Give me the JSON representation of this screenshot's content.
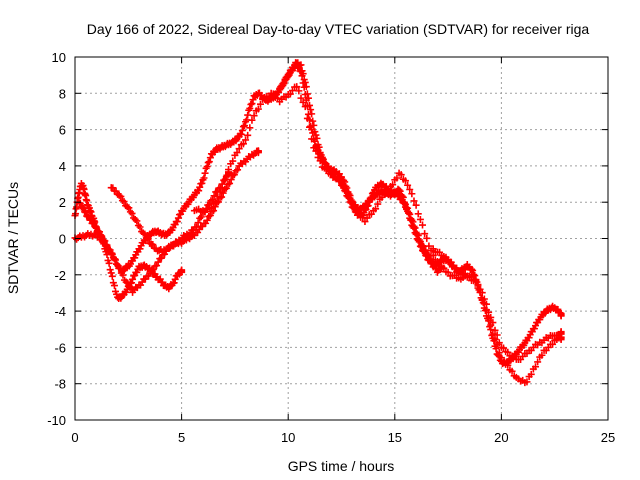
{
  "chart_data": {
    "type": "scatter",
    "title": "Day 166 of 2022, Sidereal Day-to-day VTEC variation (SDTVAR) for receiver riga",
    "xlabel": "GPS time / hours",
    "ylabel": "SDTVAR / TECUs",
    "xlim": [
      0,
      25
    ],
    "ylim": [
      -10,
      10
    ],
    "xticks": [
      0,
      5,
      10,
      15,
      20,
      25
    ],
    "yticks": [
      -10,
      -8,
      -6,
      -4,
      -2,
      0,
      2,
      4,
      6,
      8,
      10
    ],
    "grid": true,
    "marker": "plus",
    "color": "#ff0000",
    "series": [
      {
        "x": [
          0.0,
          0.1,
          0.2,
          0.3,
          0.4,
          0.5,
          0.6,
          0.7,
          0.8,
          0.9,
          1.0,
          1.2,
          1.4,
          1.6,
          1.8,
          2.0,
          2.2,
          2.4,
          2.6,
          2.8,
          3.0,
          3.2,
          3.4,
          3.6,
          3.8,
          4.0,
          4.2,
          4.4,
          4.6,
          4.8,
          5.0
        ],
        "y": [
          1.2,
          2.0,
          2.6,
          3.0,
          2.8,
          2.3,
          1.8,
          1.6,
          1.2,
          1.0,
          0.5,
          0.2,
          -0.5,
          -1.4,
          -2.4,
          -3.3,
          -3.2,
          -2.9,
          -2.5,
          -2.0,
          -1.6,
          -1.5,
          -1.6,
          -1.8,
          -2.1,
          -2.3,
          -2.6,
          -2.7,
          -2.5,
          -2.0,
          -1.8
        ]
      },
      {
        "x": [
          0.0,
          0.3,
          0.6,
          0.9,
          1.2,
          1.5,
          1.8,
          2.1,
          2.4,
          2.7,
          3.0,
          3.3,
          3.6,
          3.9,
          4.2,
          4.5,
          4.8,
          5.1,
          5.4,
          5.7,
          6.0,
          6.3,
          6.6,
          6.9,
          7.2
        ],
        "y": [
          0.0,
          0.1,
          0.2,
          0.2,
          0.0,
          -0.5,
          -1.0,
          -1.7,
          -2.4,
          -2.9,
          -2.6,
          -2.2,
          -1.8,
          -1.3,
          -0.8,
          -0.4,
          -0.2,
          0.1,
          0.3,
          0.7,
          1.4,
          1.9,
          2.5,
          3.0,
          3.6
        ]
      },
      {
        "x": [
          1.7,
          2.0,
          2.3,
          2.6,
          2.9,
          3.2,
          3.5,
          3.8,
          4.1,
          4.4,
          4.7,
          5.0,
          5.3,
          5.6,
          5.9,
          6.2,
          6.5,
          6.8,
          7.1,
          7.4,
          7.7,
          8.0,
          8.3,
          8.6
        ],
        "y": [
          2.8,
          2.5,
          2.0,
          1.5,
          0.9,
          0.3,
          -0.2,
          -0.6,
          -0.7,
          -0.5,
          -0.3,
          -0.2,
          0.0,
          0.2,
          0.6,
          1.0,
          1.6,
          2.2,
          2.8,
          3.4,
          4.0,
          4.3,
          4.6,
          4.8
        ]
      },
      {
        "x": [
          0.2,
          0.4,
          0.6,
          0.8,
          1.0,
          1.2,
          1.4,
          1.6,
          1.8,
          2.0,
          2.2,
          2.4,
          2.6,
          2.8,
          3.0,
          3.2,
          3.4,
          3.6,
          3.8,
          4.0,
          4.2,
          4.4,
          4.6,
          4.8,
          5.0,
          5.2,
          5.4,
          5.6,
          5.8,
          6.0,
          6.2,
          6.4,
          6.6,
          6.8,
          7.0,
          7.2,
          7.4,
          7.6,
          7.8,
          8.0,
          8.2,
          8.4,
          8.6,
          8.8,
          9.0,
          9.2,
          9.4,
          9.6,
          9.8,
          10.0,
          10.2,
          10.4,
          10.6,
          10.8,
          11.0,
          11.2,
          11.4,
          11.6,
          11.8,
          12.0,
          12.2,
          12.4,
          12.6,
          12.8,
          13.0,
          13.2,
          13.4,
          13.6,
          13.8,
          14.0,
          14.2,
          14.4,
          14.6,
          14.8,
          15.0,
          15.2,
          15.4,
          15.6,
          15.8,
          16.0,
          16.2,
          16.4,
          16.6,
          16.8,
          17.0,
          17.2,
          17.4,
          17.6,
          17.8,
          18.0,
          18.2,
          18.4,
          18.6,
          18.8,
          19.0,
          19.2,
          19.4,
          19.6,
          19.8,
          20.0,
          20.2,
          20.4,
          20.6,
          20.8,
          21.0,
          21.2,
          21.4,
          21.6,
          21.8,
          22.0,
          22.2,
          22.4,
          22.6,
          22.8
        ],
        "y": [
          2.0,
          1.6,
          1.2,
          0.9,
          0.6,
          0.2,
          -0.2,
          -0.6,
          -1.0,
          -1.5,
          -1.8,
          -1.6,
          -1.4,
          -1.0,
          -0.6,
          -0.2,
          0.1,
          0.3,
          0.4,
          0.3,
          0.2,
          0.3,
          0.6,
          1.0,
          1.5,
          1.8,
          2.1,
          2.4,
          2.7,
          3.2,
          4.0,
          4.6,
          4.9,
          5.0,
          5.1,
          5.2,
          5.3,
          5.5,
          5.8,
          6.4,
          7.2,
          7.8,
          8.0,
          7.8,
          7.6,
          7.7,
          7.9,
          8.2,
          8.6,
          9.0,
          9.3,
          9.6,
          9.2,
          8.0,
          6.5,
          5.5,
          4.8,
          4.4,
          4.0,
          3.8,
          3.7,
          3.5,
          3.2,
          2.6,
          2.0,
          1.7,
          1.6,
          1.8,
          2.1,
          2.3,
          2.5,
          2.6,
          2.5,
          2.4,
          2.5,
          2.7,
          2.2,
          1.5,
          0.8,
          0.2,
          -0.4,
          -0.8,
          -1.2,
          -1.5,
          -1.4,
          -1.2,
          -1.1,
          -1.3,
          -1.6,
          -1.8,
          -1.7,
          -1.5,
          -1.7,
          -2.2,
          -3.0,
          -3.8,
          -4.6,
          -5.5,
          -6.3,
          -6.8,
          -6.9,
          -6.7,
          -6.5,
          -6.2,
          -5.9,
          -5.6,
          -5.2,
          -4.8,
          -4.4,
          -4.1,
          -3.9,
          -3.8,
          -3.9,
          -4.2
        ]
      },
      {
        "x": [
          5.6,
          6.0,
          6.4,
          6.8,
          7.2,
          7.6,
          8.0,
          8.4,
          8.8,
          9.2,
          9.6,
          10.0,
          10.4,
          10.8,
          11.2,
          11.6,
          12.0,
          12.4,
          12.8,
          13.2,
          13.6,
          14.0,
          14.4,
          14.8,
          15.2,
          15.6,
          16.0,
          16.4,
          16.8,
          17.2,
          17.6,
          18.0,
          18.4,
          18.8,
          19.2,
          19.6,
          20.0,
          20.4,
          20.8,
          21.2,
          21.6,
          22.0,
          22.4,
          22.8
        ],
        "y": [
          1.6,
          1.5,
          1.7,
          2.5,
          3.8,
          4.8,
          5.4,
          6.8,
          7.6,
          8.0,
          7.6,
          7.9,
          8.4,
          7.2,
          5.0,
          4.0,
          3.5,
          3.2,
          2.5,
          1.5,
          1.0,
          1.5,
          2.3,
          2.8,
          3.6,
          3.0,
          1.8,
          0.3,
          -1.0,
          -1.6,
          -2.0,
          -2.2,
          -2.1,
          -2.4,
          -3.6,
          -5.2,
          -6.6,
          -7.2,
          -7.8,
          -7.9,
          -7.0,
          -6.2,
          -5.8,
          -5.2
        ]
      },
      {
        "x": [
          9.6,
          9.8,
          10.0,
          10.2,
          10.4,
          10.6,
          10.8,
          11.0,
          11.2,
          11.4,
          11.6,
          11.8,
          12.0,
          12.2,
          12.4,
          12.6,
          12.8,
          13.0,
          13.2,
          13.4,
          13.6,
          13.8,
          14.0,
          14.2,
          14.4,
          14.6,
          14.8,
          15.0,
          15.2,
          15.4,
          15.6,
          15.8,
          16.0,
          16.2,
          16.4,
          16.6,
          16.8,
          17.0,
          17.2
        ],
        "y": [
          8.2,
          8.6,
          9.0,
          9.4,
          9.7,
          9.5,
          8.6,
          7.4,
          6.2,
          5.2,
          4.4,
          3.9,
          3.6,
          3.4,
          3.2,
          2.8,
          2.3,
          1.8,
          1.4,
          1.2,
          1.5,
          2.0,
          2.6,
          2.9,
          3.0,
          2.8,
          2.6,
          2.5,
          2.3,
          2.0,
          1.6,
          1.0,
          0.4,
          -0.2,
          -0.6,
          -1.0,
          -1.4,
          -1.8,
          -1.6
        ]
      },
      {
        "x": [
          16.8,
          17.2,
          17.6,
          18.0,
          18.4,
          18.8,
          19.2,
          19.6,
          20.0,
          20.4,
          20.8,
          21.2,
          21.6,
          22.0,
          22.4,
          22.8
        ],
        "y": [
          -0.6,
          -0.9,
          -1.4,
          -1.9,
          -2.0,
          -2.3,
          -3.3,
          -4.7,
          -6.0,
          -6.4,
          -6.7,
          -6.3,
          -5.9,
          -5.6,
          -5.3,
          -5.5
        ]
      }
    ]
  }
}
